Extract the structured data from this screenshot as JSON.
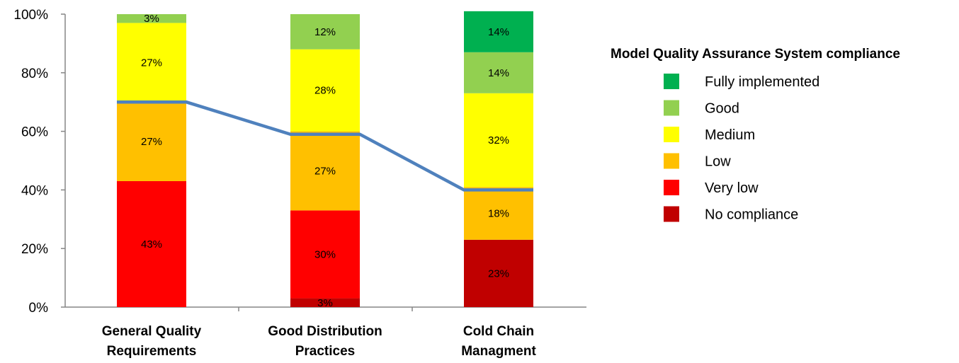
{
  "chart_data": {
    "type": "bar",
    "stacked": true,
    "categories": [
      [
        "General Quality",
        "Requirements"
      ],
      [
        "Good Distribution",
        "Practices"
      ],
      [
        "Cold Chain",
        "Managment"
      ]
    ],
    "series": [
      {
        "name": "No compliance",
        "color": "#C00000",
        "values": [
          0,
          3,
          23
        ]
      },
      {
        "name": "Very low",
        "color": "#FF0000",
        "values": [
          43,
          30,
          0
        ]
      },
      {
        "name": "Low",
        "color": "#FFC000",
        "values": [
          27,
          27,
          18
        ]
      },
      {
        "name": "Medium",
        "color": "#FFFF00",
        "values": [
          27,
          28,
          32
        ]
      },
      {
        "name": "Good",
        "color": "#92D050",
        "values": [
          3,
          12,
          14
        ]
      },
      {
        "name": "Fully implemented",
        "color": "#00B050",
        "values": [
          0,
          0,
          14
        ]
      }
    ],
    "line_values": [
      70,
      59,
      40
    ],
    "line_color": "#4F81BD",
    "ylim": [
      0,
      100
    ],
    "yticks": [
      "0%",
      "20%",
      "40%",
      "60%",
      "80%",
      "100%"
    ],
    "legend_title": "Model Quality Assurance System compliance",
    "legend_position": "right",
    "grid": false
  }
}
